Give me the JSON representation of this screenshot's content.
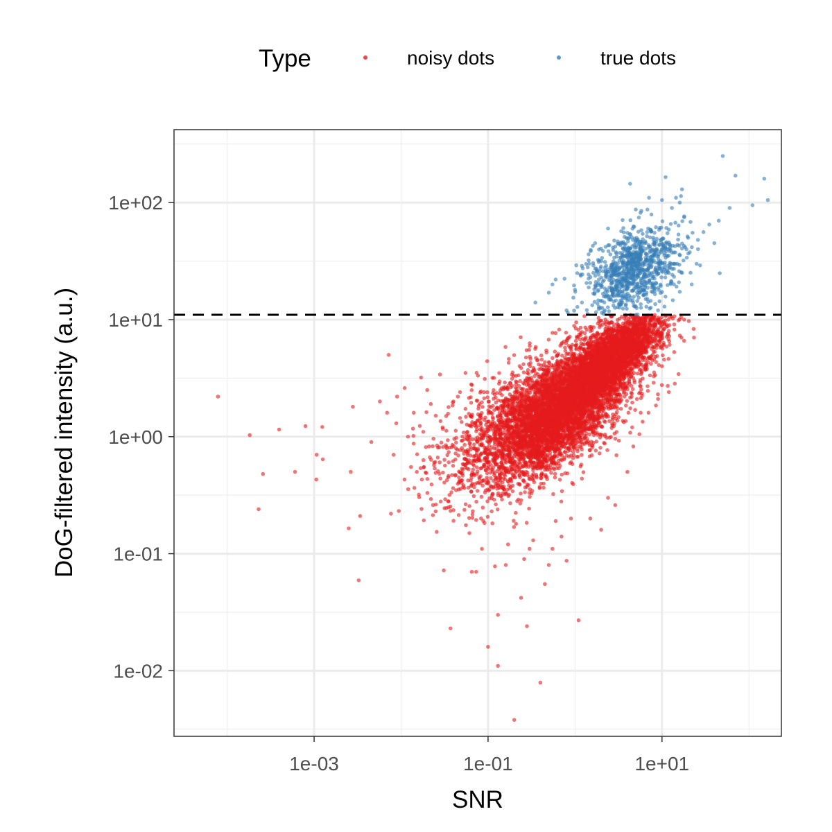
{
  "chart_data": {
    "type": "scatter",
    "x_scale": "log10",
    "y_scale": "log10",
    "xlabel": "SNR",
    "ylabel": "DoG-filtered intensity (a.u.)",
    "xlim": [
      2.45e-05,
      236
    ],
    "ylim": [
      0.00275,
      420
    ],
    "x_ticks": [
      0.001,
      0.1,
      10
    ],
    "x_tick_labels": [
      "1e-03",
      "1e-01",
      "1e+01"
    ],
    "y_ticks": [
      0.01,
      0.1,
      1,
      10,
      100
    ],
    "y_tick_labels": [
      "1e-02",
      "1e-01",
      "1e+00",
      "1e+01",
      "1e+02"
    ],
    "grid": true,
    "threshold": {
      "y": 11,
      "style": "dashed"
    },
    "legend": {
      "title": "Type",
      "position": "top",
      "entries": [
        "noisy dots",
        "true dots"
      ]
    },
    "series": [
      {
        "name": "noisy dots",
        "color": "#E41A1C",
        "points": [
          [
            7.85e-05,
            2.2
          ],
          [
            0.000182,
            1.03
          ],
          [
            0.00023,
            0.24
          ],
          [
            0.000258,
            0.48
          ],
          [
            0.000396,
            1.15
          ],
          [
            0.000603,
            0.5
          ],
          [
            0.000795,
            1.23
          ],
          [
            0.00106,
            0.43
          ],
          [
            0.00107,
            0.7
          ],
          [
            0.00124,
            1.21
          ],
          [
            0.00126,
            0.64
          ],
          [
            0.00264,
            0.5
          ],
          [
            0.00279,
            1.8
          ],
          [
            0.00338,
            0.21
          ],
          [
            0.00455,
            0.9
          ],
          [
            0.0057,
            2.0
          ],
          [
            0.0069,
            1.6
          ],
          [
            0.0072,
            5.0
          ],
          [
            0.0082,
            0.7
          ],
          [
            0.0088,
            1.3
          ],
          [
            0.011,
            2.6
          ],
          [
            0.012,
            1.0
          ],
          [
            0.014,
            1.6
          ],
          [
            0.016,
            0.32
          ],
          [
            0.017,
            3.2
          ],
          [
            0.02,
            2.5
          ],
          [
            0.024,
            0.6
          ],
          [
            0.025,
            0.23
          ],
          [
            0.028,
            3.4
          ],
          [
            0.031,
            0.072
          ],
          [
            0.033,
            1.5
          ],
          [
            0.035,
            0.28
          ],
          [
            0.037,
            0.023
          ],
          [
            0.04,
            2.0
          ],
          [
            0.047,
            0.42
          ],
          [
            0.055,
            3.5
          ],
          [
            0.061,
            0.15
          ],
          [
            0.065,
            0.07
          ],
          [
            0.069,
            0.48
          ],
          [
            0.073,
            0.07
          ],
          [
            0.08,
            1.9
          ],
          [
            0.083,
            0.2
          ],
          [
            0.085,
            0.11
          ],
          [
            0.1,
            0.016
          ],
          [
            0.12,
            0.078
          ],
          [
            0.13,
            0.011
          ],
          [
            0.13,
            0.03
          ],
          [
            0.16,
            0.08
          ],
          [
            0.18,
            0.27
          ],
          [
            0.2,
            0.0038
          ],
          [
            0.24,
            0.042
          ],
          [
            0.28,
            0.024
          ],
          [
            0.3,
            0.11
          ],
          [
            0.4,
            0.0079
          ],
          [
            0.5,
            0.08
          ],
          [
            0.6,
            0.19
          ],
          [
            0.8,
            0.087
          ],
          [
            1.1,
            0.027
          ],
          [
            1.5,
            0.2
          ],
          [
            2.0,
            0.16
          ],
          [
            2.4,
            0.3
          ],
          [
            2.9,
            0.26
          ],
          [
            4.0,
            0.5
          ],
          [
            5.5,
            1.05
          ],
          [
            7.0,
            1.6
          ],
          [
            9.0,
            2.1
          ],
          [
            10.0,
            4.0
          ],
          [
            12.0,
            8.0
          ],
          [
            18.0,
            10.0
          ],
          [
            0.09,
            2.4
          ],
          [
            0.11,
            0.23
          ],
          [
            0.14,
            0.31
          ],
          [
            0.17,
            0.12
          ],
          [
            0.21,
            0.18
          ],
          [
            0.26,
            0.09
          ],
          [
            0.33,
            0.13
          ],
          [
            0.45,
            0.055
          ],
          [
            0.55,
            0.11
          ],
          [
            0.7,
            0.14
          ],
          [
            0.9,
            0.2
          ],
          [
            0.018,
            1.1
          ],
          [
            0.022,
            1.9
          ],
          [
            0.03,
            1.2
          ],
          [
            0.045,
            2.2
          ],
          [
            0.05,
            0.8
          ],
          [
            0.058,
            1.1
          ],
          [
            0.064,
            2.8
          ],
          [
            0.075,
            0.9
          ],
          [
            0.009,
            2.2
          ],
          [
            0.013,
            0.55
          ]
        ],
        "dense_regions": [
          {
            "count": 2500,
            "log_x_center": -0.45,
            "log_x_sd": 0.52,
            "log_y_center": 0.12,
            "log_y_sd": 0.3,
            "xy_corr": 0.55
          },
          {
            "count": 3500,
            "log_x_center": -0.05,
            "log_x_sd": 0.38,
            "log_y_center": 0.32,
            "log_y_sd": 0.3,
            "xy_corr": 0.72
          },
          {
            "count": 2000,
            "log_x_center": 0.5,
            "log_x_sd": 0.26,
            "log_y_center": 0.72,
            "log_y_sd": 0.17,
            "xy_corr": 0.72
          }
        ]
      },
      {
        "name": "true dots",
        "color": "#377EB8",
        "points": [
          [
            0.35,
            14
          ],
          [
            0.5,
            17
          ],
          [
            0.55,
            20
          ],
          [
            0.6,
            22
          ],
          [
            1.2,
            14
          ],
          [
            1.4,
            28
          ],
          [
            1.9,
            32
          ],
          [
            2.4,
            60
          ],
          [
            2.9,
            42
          ],
          [
            3.4,
            57
          ],
          [
            4.3,
            145
          ],
          [
            4.7,
            24
          ],
          [
            5.8,
            85
          ],
          [
            6.0,
            30
          ],
          [
            7.1,
            110
          ],
          [
            8.0,
            48
          ],
          [
            10.0,
            105
          ],
          [
            11.0,
            165
          ],
          [
            13.0,
            90
          ],
          [
            14.5,
            110
          ],
          [
            16.0,
            100
          ],
          [
            17.0,
            130
          ],
          [
            18.0,
            75
          ],
          [
            22.0,
            20
          ],
          [
            26.0,
            40
          ],
          [
            30.0,
            56
          ],
          [
            35.0,
            65
          ],
          [
            50.0,
            250
          ],
          [
            60.0,
            90
          ],
          [
            70.0,
            170
          ],
          [
            110.0,
            95
          ],
          [
            150.0,
            160
          ],
          [
            165.0,
            105
          ],
          [
            0.8,
            12
          ],
          [
            1.0,
            18
          ],
          [
            2.0,
            20
          ],
          [
            3.0,
            16
          ],
          [
            4.0,
            19
          ],
          [
            5.0,
            13
          ],
          [
            6.5,
            15
          ],
          [
            9.0,
            12
          ],
          [
            12.0,
            25
          ],
          [
            15.0,
            30
          ],
          [
            20.0,
            50
          ],
          [
            25.0,
            30
          ],
          [
            40.0,
            45
          ],
          [
            45.0,
            70
          ],
          [
            1.7,
            45
          ],
          [
            2.2,
            12
          ],
          [
            3.6,
            26
          ]
        ],
        "dense_regions": [
          {
            "count": 900,
            "log_x_center": 0.65,
            "log_x_sd": 0.27,
            "log_y_center": 1.42,
            "log_y_sd": 0.18,
            "xy_corr": 0.35,
            "y_min": 11
          }
        ]
      }
    ]
  }
}
